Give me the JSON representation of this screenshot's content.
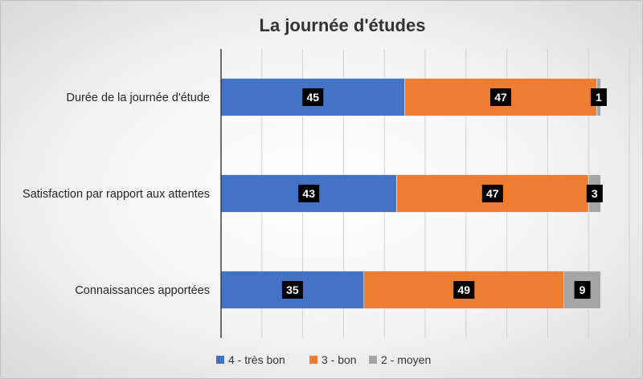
{
  "chart_data": {
    "type": "bar",
    "orientation": "horizontal",
    "stacked": true,
    "title": "La journée d'études",
    "categories": [
      "Durée de la journée d'étude",
      "Satisfaction par rapport aux attentes",
      "Connaissances apportées"
    ],
    "series": [
      {
        "name": "4 - très bon",
        "color": "#4472C4",
        "values": [
          45,
          43,
          35
        ]
      },
      {
        "name": "3 - bon",
        "color": "#ED7D31",
        "values": [
          47,
          47,
          49
        ]
      },
      {
        "name": "2 - moyen",
        "color": "#A5A5A5",
        "values": [
          1,
          3,
          9
        ]
      }
    ],
    "xlim": [
      0,
      100
    ],
    "grid": "vertical",
    "legend": "bottom",
    "data_labels": true
  }
}
